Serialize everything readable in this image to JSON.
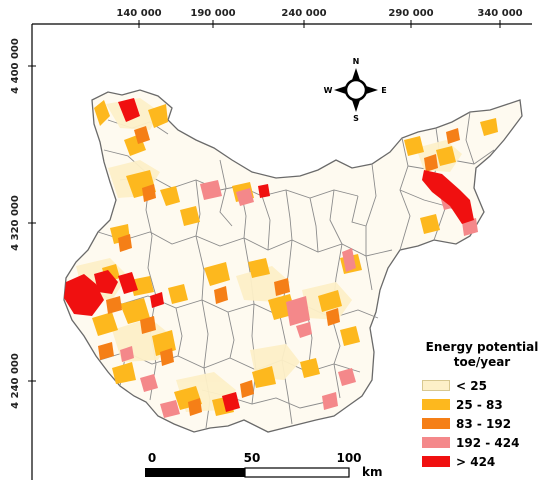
{
  "axes": {
    "x_ticks": [
      "140 000",
      "190 000",
      "240 000",
      "290 000",
      "340 000"
    ],
    "y_ticks": [
      "4 400 000",
      "4 320 000",
      "4 240 000"
    ]
  },
  "compass": {
    "n": "N",
    "s": "S",
    "e": "E",
    "w": "W"
  },
  "legend": {
    "title_line1": "Energy potential",
    "title_line2": "toe/year",
    "items": [
      {
        "label": "< 25",
        "color": "#fdf0c8"
      },
      {
        "label": "25 - 83",
        "color": "#fdb81e"
      },
      {
        "label": "83 - 192",
        "color": "#f57f17"
      },
      {
        "label": "192 - 424",
        "color": "#f4888a"
      },
      {
        "label": "> 424",
        "color": "#f01010"
      }
    ]
  },
  "scale_bar": {
    "labels": [
      "0",
      "50",
      "100"
    ],
    "unit": "km"
  }
}
